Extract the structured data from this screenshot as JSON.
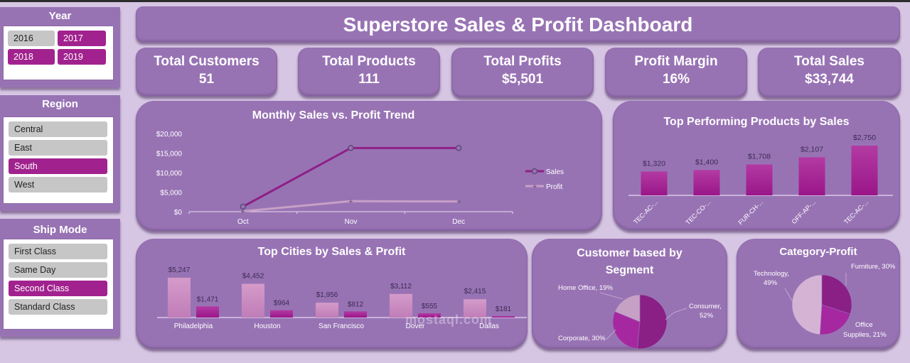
{
  "title": "Superstore Sales & Profit Dashboard",
  "slicers": {
    "year": {
      "title": "Year",
      "items": [
        {
          "label": "2016",
          "selected": false
        },
        {
          "label": "2017",
          "selected": true
        },
        {
          "label": "2018",
          "selected": true
        },
        {
          "label": "2019",
          "selected": true
        }
      ]
    },
    "region": {
      "title": "Region",
      "items": [
        {
          "label": "Central",
          "selected": false
        },
        {
          "label": "East",
          "selected": false
        },
        {
          "label": "South",
          "selected": true
        },
        {
          "label": "West",
          "selected": false
        }
      ]
    },
    "ship_mode": {
      "title": "Ship Mode",
      "items": [
        {
          "label": "First Class",
          "selected": false
        },
        {
          "label": "Same Day",
          "selected": false
        },
        {
          "label": "Second Class",
          "selected": true
        },
        {
          "label": "Standard Class",
          "selected": false
        }
      ]
    }
  },
  "kpis": [
    {
      "label": "Total Customers",
      "value": "51"
    },
    {
      "label": "Total Products",
      "value": "111"
    },
    {
      "label": "Total Profits",
      "value": "$5,501"
    },
    {
      "label": "Profit Margin",
      "value": "16%"
    },
    {
      "label": "Total Sales",
      "value": "$33,744"
    }
  ],
  "colors": {
    "background": "#d6c6e3",
    "card": "#9873b4",
    "accent": "#a1228e",
    "slicer_off": "#c6c6c6",
    "sales_line": "#8e1f86",
    "profit_line": "#c7a0c6"
  },
  "watermark": "mostaql.com",
  "chart_data": [
    {
      "id": "monthly_trend",
      "type": "line",
      "title": "Monthly Sales vs. Profit Trend",
      "categories": [
        "Oct",
        "Nov",
        "Dec"
      ],
      "series": [
        {
          "name": "Sales",
          "values": [
            1300,
            16300,
            16300
          ]
        },
        {
          "name": "Profit",
          "values": [
            100,
            2700,
            2600
          ]
        }
      ],
      "y_ticks": [
        "$0",
        "$5,000",
        "$10,000",
        "$15,000",
        "$20,000"
      ],
      "ylim": [
        0,
        20000
      ],
      "legend": [
        "Sales",
        "Profit"
      ],
      "legend_position": "right"
    },
    {
      "id": "top_products",
      "type": "bar",
      "title": "Top Performing Products by Sales",
      "categories": [
        "TEC-AC-...",
        "TEC-CO-...",
        "FUR-CH-...",
        "OFF-AP-...",
        "TEC-AC-..."
      ],
      "values": [
        1320,
        1400,
        1708,
        2107,
        2750
      ],
      "labels": [
        "$1,320",
        "$1,400",
        "$1,708",
        "$2,107",
        "$2,750"
      ]
    },
    {
      "id": "top_cities",
      "type": "bar",
      "title": "Top Cities by Sales & Profit",
      "categories": [
        "Philadelphia",
        "Houston",
        "San Francisco",
        "Dover",
        "Dallas"
      ],
      "series": [
        {
          "name": "Sales",
          "values": [
            5247,
            4452,
            1956,
            3112,
            2415
          ],
          "labels": [
            "$5,247",
            "$4,452",
            "$1,956",
            "$3,112",
            "$2,415"
          ]
        },
        {
          "name": "Profit",
          "values": [
            1471,
            964,
            812,
            555,
            181
          ],
          "labels": [
            "$1,471",
            "$964",
            "$812",
            "$555",
            "$181"
          ]
        }
      ]
    },
    {
      "id": "segment",
      "type": "pie",
      "title": "Customer based by Segment",
      "categories": [
        "Consumer",
        "Corporate",
        "Home Office"
      ],
      "values": [
        52,
        30,
        19
      ],
      "labels": [
        "Consumer, 52%",
        "Corporate, 30%",
        "Home Office, 19%"
      ]
    },
    {
      "id": "category_profit",
      "type": "pie",
      "title": "Category-Profit",
      "categories": [
        "Furniture",
        "Office Supplies",
        "Technology"
      ],
      "values": [
        30,
        21,
        49
      ],
      "labels": [
        "Furniture, 30%",
        "Office Supplies, 21%",
        "Technology, 49%"
      ]
    }
  ]
}
